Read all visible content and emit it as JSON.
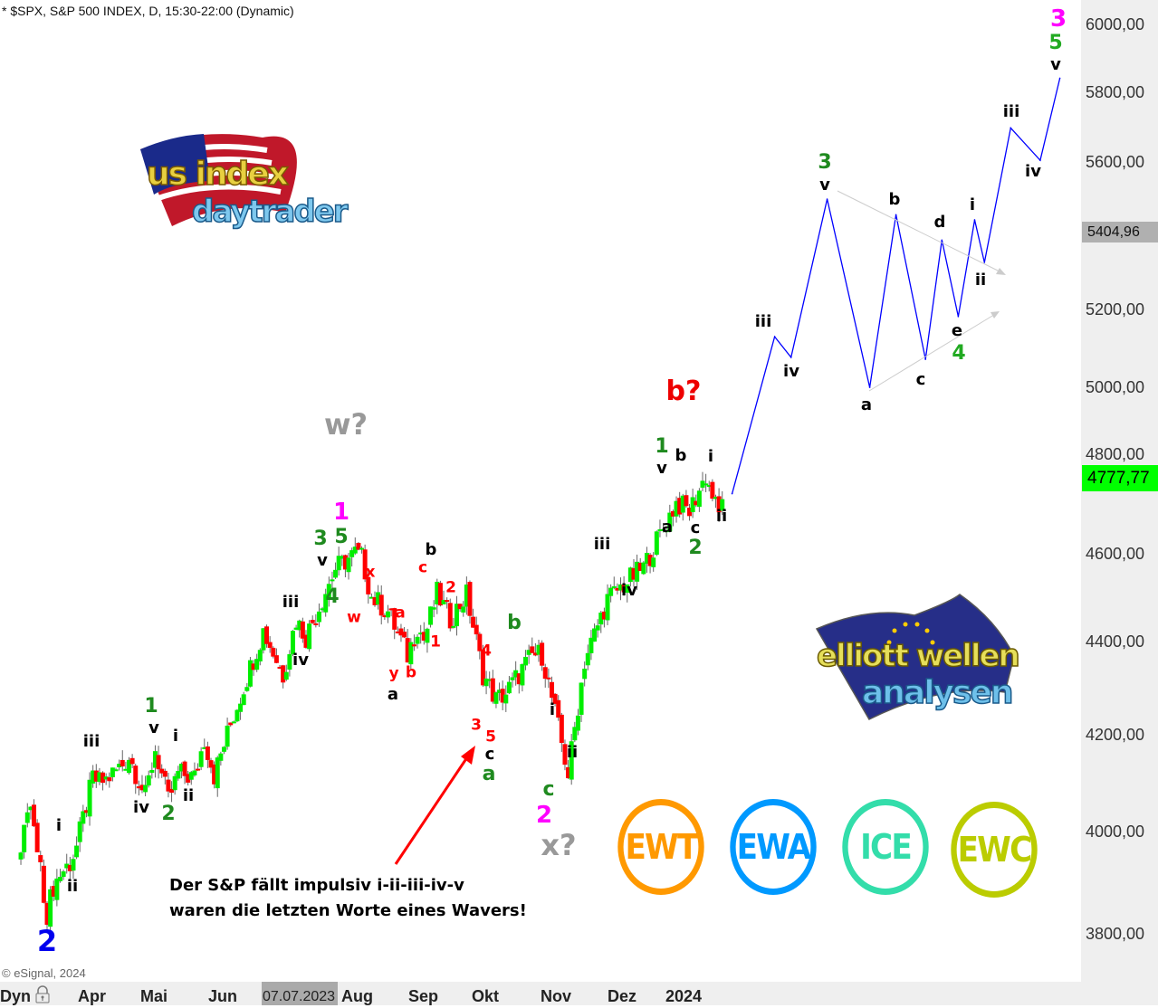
{
  "header": {
    "title": "* $SPX, S&P 500 INDEX, D, 15:30-22:00 (Dynamic)"
  },
  "footer": {
    "copyright": "© eSignal, 2024",
    "dyn_label": "Dyn",
    "cursor_date": "07.07.2023"
  },
  "price_boxes": {
    "last": "4777,77",
    "last_color": "#00ff00",
    "marker": "5404,96",
    "marker_color": "#b0b0b0"
  },
  "chart_data": {
    "type": "candlestick",
    "symbol": "$SPX",
    "scale": "log",
    "ylim": [
      3700,
      6100
    ],
    "grid": false,
    "colors": {
      "up": "#00ee00",
      "down": "#ff0000",
      "projection": "#0000ff"
    },
    "x_tick_labels": [
      "Apr",
      "Mai",
      "Jun",
      "Aug",
      "Sep",
      "Okt",
      "Nov",
      "Dez",
      "2024"
    ],
    "y_ticks": [
      {
        "value": 6000,
        "label": "6000,00"
      },
      {
        "value": 5800,
        "label": "5800,00"
      },
      {
        "value": 5600,
        "label": "5600,00"
      },
      {
        "value": 5200,
        "label": "5200,00"
      },
      {
        "value": 5000,
        "label": "5000,00"
      },
      {
        "value": 4800,
        "label": "4800,00"
      },
      {
        "value": 4600,
        "label": "4600,00"
      },
      {
        "value": 4400,
        "label": "4400,00"
      },
      {
        "value": 4200,
        "label": "4200,00"
      },
      {
        "value": 4000,
        "label": "4000,00"
      },
      {
        "value": 3800,
        "label": "3800,00"
      }
    ],
    "price_path": [
      [
        "2023-03-01",
        3950
      ],
      [
        "2023-03-03",
        4045
      ],
      [
        "2023-03-06",
        4048
      ],
      [
        "2023-03-09",
        3918
      ],
      [
        "2023-03-13",
        3840
      ],
      [
        "2023-03-15",
        3892
      ],
      [
        "2023-03-17",
        3916
      ],
      [
        "2023-03-22",
        3937
      ],
      [
        "2023-03-24",
        3970
      ],
      [
        "2023-03-31",
        4109
      ],
      [
        "2023-04-04",
        4100
      ],
      [
        "2023-04-06",
        4105
      ],
      [
        "2023-04-14",
        4137
      ],
      [
        "2023-04-18",
        4155
      ],
      [
        "2023-04-25",
        4071
      ],
      [
        "2023-04-28",
        4169
      ],
      [
        "2023-05-04",
        4061
      ],
      [
        "2023-05-09",
        4119
      ],
      [
        "2023-05-16",
        4110
      ],
      [
        "2023-05-19",
        4191
      ],
      [
        "2023-05-24",
        4115
      ],
      [
        "2023-06-01",
        4221
      ],
      [
        "2023-06-15",
        4425
      ],
      [
        "2023-06-26",
        4328
      ],
      [
        "2023-06-30",
        4450
      ],
      [
        "2023-07-06",
        4411
      ],
      [
        "2023-07-19",
        4565
      ],
      [
        "2023-07-27",
        4600
      ],
      [
        "2023-07-31",
        4589
      ],
      [
        "2023-08-03",
        4501
      ],
      [
        "2023-08-10",
        4468
      ],
      [
        "2023-08-18",
        4370
      ],
      [
        "2023-08-23",
        4436
      ],
      [
        "2023-08-25",
        4405
      ],
      [
        "2023-08-31",
        4508
      ],
      [
        "2023-09-07",
        4451
      ],
      [
        "2023-09-14",
        4505
      ],
      [
        "2023-09-21",
        4330
      ],
      [
        "2023-09-27",
        4274
      ],
      [
        "2023-10-02",
        4288
      ],
      [
        "2023-10-12",
        4370
      ],
      [
        "2023-10-17",
        4373
      ],
      [
        "2023-10-27",
        4117
      ],
      [
        "2023-11-03",
        4358
      ],
      [
        "2023-11-14",
        4495
      ],
      [
        "2023-11-30",
        4568
      ],
      [
        "2023-12-14",
        4719
      ],
      [
        "2023-12-20",
        4698
      ],
      [
        "2023-12-28",
        4783
      ],
      [
        "2024-01-04",
        4688
      ],
      [
        "2024-01-05",
        4740
      ]
    ],
    "projection": [
      [
        "2024-01-10",
        4740
      ],
      [
        "2024-01-29",
        5129
      ],
      [
        "2024-02-05",
        5076
      ],
      [
        "2024-02-20",
        5496
      ],
      [
        "2024-03-08",
        5000
      ],
      [
        "2024-03-20",
        5453
      ],
      [
        "2024-04-02",
        5071
      ],
      [
        "2024-04-09",
        5384
      ],
      [
        "2024-04-16",
        5181
      ],
      [
        "2024-04-23",
        5439
      ],
      [
        "2024-04-26",
        5324
      ],
      [
        "2024-05-08",
        5696
      ],
      [
        "2024-05-21",
        5604
      ],
      [
        "2024-05-29",
        5840
      ]
    ]
  },
  "wave_labels": [
    "2",
    "i",
    "ii",
    "iii",
    "iv",
    "1",
    "v",
    "2",
    "i",
    "ii",
    "iii",
    "iv",
    "3",
    "v",
    "5",
    "1",
    "4",
    "x",
    "w",
    "a",
    "y",
    "a",
    "b",
    "b",
    "c",
    "2",
    "1",
    "4",
    "3",
    "5",
    "c",
    "a",
    "b",
    "w?",
    "i",
    "ii",
    "c",
    "2",
    "x?",
    "iii",
    "iv",
    "1",
    "v",
    "a",
    "b",
    "c",
    "2",
    "i",
    "ii",
    "b?",
    "iii",
    "iv",
    "3",
    "v",
    "a",
    "b",
    "c",
    "d",
    "e",
    "4",
    "i",
    "ii",
    "iii",
    "iv",
    "3",
    "5",
    "v"
  ],
  "annotation": {
    "line1": "Der S&P fällt impulsiv i-ii-iii-iv-v",
    "line2": "waren die letzten Worte eines Wavers!"
  },
  "logos": {
    "us_index": {
      "line1": "us index",
      "line2": "daytrader"
    },
    "elliott": {
      "line1": "elliott wellen",
      "line2": "analysen"
    },
    "badges": [
      {
        "text": "EWT",
        "color": "#ff9900"
      },
      {
        "text": "EWA",
        "color": "#0099ff"
      },
      {
        "text": "ICE",
        "color": "#33ddaa"
      },
      {
        "text": "EWC",
        "color": "#bbcc00"
      }
    ]
  }
}
